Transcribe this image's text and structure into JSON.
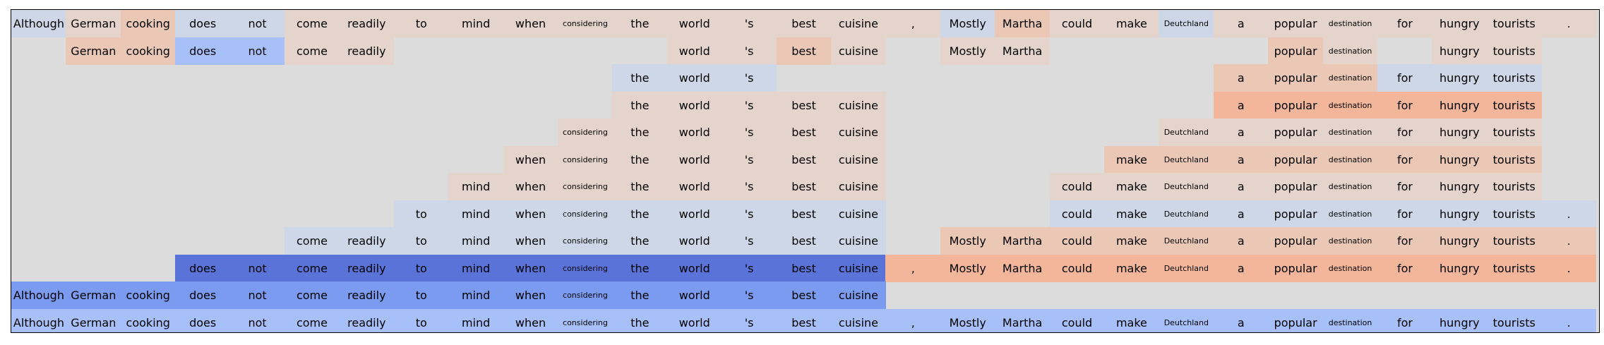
{
  "tokens": [
    "Although",
    "German",
    "cooking",
    "does",
    "not",
    "come",
    "readily",
    "to",
    "mind",
    "when",
    "considering",
    "the",
    "world",
    "'s",
    "best",
    "cuisine",
    ",",
    "Mostly",
    "Martha",
    "could",
    "make",
    "Deutchland",
    "a",
    "popular",
    "destination",
    "for",
    "hungry",
    "tourists",
    "."
  ],
  "small_tokens": [
    "considering",
    "Deutchland",
    "destination"
  ],
  "colors": {
    "background": "#dcdcdc",
    "n3": "#5a73d9",
    "n2": "#7a9bef",
    "n1": "#a7c0f9",
    "n0": "#cdd7e8",
    "p0": "#e5d4cb",
    "p1": "#ebc7b5",
    "p2": "#f3b69a",
    "border": "#000000"
  },
  "rows": [
    {
      "cells": {
        "0": "n0",
        "1": "p0",
        "2": "p1",
        "3": "n0",
        "4": "n0",
        "5": "p0",
        "6": "p0",
        "7": "p0",
        "8": "p0",
        "9": "p0",
        "10": "p0",
        "11": "p0",
        "12": "p0",
        "13": "p0",
        "14": "p0",
        "15": "p0",
        "16": "p0",
        "17": "n0",
        "18": "p1",
        "19": "p0",
        "20": "p0",
        "21": "n0",
        "22": "p0",
        "23": "p0",
        "24": "p0",
        "25": "p0",
        "26": "p0",
        "27": "p0",
        "28": "p0"
      }
    },
    {
      "cells": {
        "1": "p1",
        "2": "p1",
        "3": "n1",
        "4": "n1",
        "5": "p0",
        "6": "p0",
        "12": "p0",
        "13": "p0",
        "14": "p1",
        "15": "p0",
        "17": "p0",
        "18": "p0",
        "23": "p1",
        "24": "p0",
        "26": "p0",
        "27": "p0"
      }
    },
    {
      "cells": {
        "11": "n0",
        "12": "n0",
        "13": "n0",
        "22": "p1",
        "23": "p1",
        "24": "p1",
        "25": "n0",
        "26": "n0",
        "27": "n0"
      }
    },
    {
      "cells": {
        "11": "p0",
        "12": "p0",
        "13": "p0",
        "14": "p0",
        "15": "p0",
        "22": "p2",
        "23": "p2",
        "24": "p2",
        "25": "p2",
        "26": "p2",
        "27": "p2"
      }
    },
    {
      "cells": {
        "10": "p0",
        "11": "p0",
        "12": "p0",
        "13": "p0",
        "14": "p0",
        "15": "p0",
        "21": "p0",
        "22": "p0",
        "23": "p0",
        "24": "p0",
        "25": "p0",
        "26": "p0",
        "27": "p0"
      }
    },
    {
      "cells": {
        "9": "p0",
        "10": "p0",
        "11": "p0",
        "12": "p0",
        "13": "p0",
        "14": "p0",
        "15": "p0",
        "20": "p1",
        "21": "p1",
        "22": "p1",
        "23": "p1",
        "24": "p1",
        "25": "p1",
        "26": "p1",
        "27": "p1"
      }
    },
    {
      "cells": {
        "8": "p0",
        "9": "p0",
        "10": "p0",
        "11": "p0",
        "12": "p0",
        "13": "p0",
        "14": "p0",
        "15": "p0",
        "19": "p0",
        "20": "p0",
        "21": "p0",
        "22": "p0",
        "23": "p0",
        "24": "p0",
        "25": "p0",
        "26": "p0",
        "27": "p0"
      }
    },
    {
      "cells": {
        "7": "n0",
        "8": "n0",
        "9": "n0",
        "10": "n0",
        "11": "n0",
        "12": "n0",
        "13": "n0",
        "14": "n0",
        "15": "n0",
        "19": "n0",
        "20": "n0",
        "21": "n0",
        "22": "n0",
        "23": "n0",
        "24": "n0",
        "25": "n0",
        "26": "n0",
        "27": "n0",
        "28": "n0"
      }
    },
    {
      "cells": {
        "5": "n0",
        "6": "n0",
        "7": "n0",
        "8": "n0",
        "9": "n0",
        "10": "n0",
        "11": "n0",
        "12": "n0",
        "13": "n0",
        "14": "n0",
        "15": "n0",
        "17": "p1",
        "18": "p1",
        "19": "p1",
        "20": "p1",
        "21": "p1",
        "22": "p1",
        "23": "p1",
        "24": "p1",
        "25": "p1",
        "26": "p1",
        "27": "p1",
        "28": "p1"
      }
    },
    {
      "cells": {
        "3": "n3",
        "4": "n3",
        "5": "n3",
        "6": "n3",
        "7": "n3",
        "8": "n3",
        "9": "n3",
        "10": "n3",
        "11": "n3",
        "12": "n3",
        "13": "n3",
        "14": "n3",
        "15": "n3",
        "16": "p2",
        "17": "p2",
        "18": "p2",
        "19": "p2",
        "20": "p2",
        "21": "p2",
        "22": "p2",
        "23": "p2",
        "24": "p2",
        "25": "p2",
        "26": "p2",
        "27": "p2",
        "28": "p2"
      }
    },
    {
      "cells": {
        "0": "n2",
        "1": "n2",
        "2": "n2",
        "3": "n2",
        "4": "n2",
        "5": "n2",
        "6": "n2",
        "7": "n2",
        "8": "n2",
        "9": "n2",
        "10": "n2",
        "11": "n2",
        "12": "n2",
        "13": "n2",
        "14": "n2",
        "15": "n2"
      }
    },
    {
      "cells": {
        "0": "n1",
        "1": "n1",
        "2": "n1",
        "3": "n1",
        "4": "n1",
        "5": "n1",
        "6": "n1",
        "7": "n1",
        "8": "n1",
        "9": "n1",
        "10": "n1",
        "11": "n1",
        "12": "n1",
        "13": "n1",
        "14": "n1",
        "15": "n1",
        "16": "n1",
        "17": "n1",
        "18": "n1",
        "19": "n1",
        "20": "n1",
        "21": "n1",
        "22": "n1",
        "23": "n1",
        "24": "n1",
        "25": "n1",
        "26": "n1",
        "27": "n1",
        "28": "n1"
      }
    }
  ]
}
